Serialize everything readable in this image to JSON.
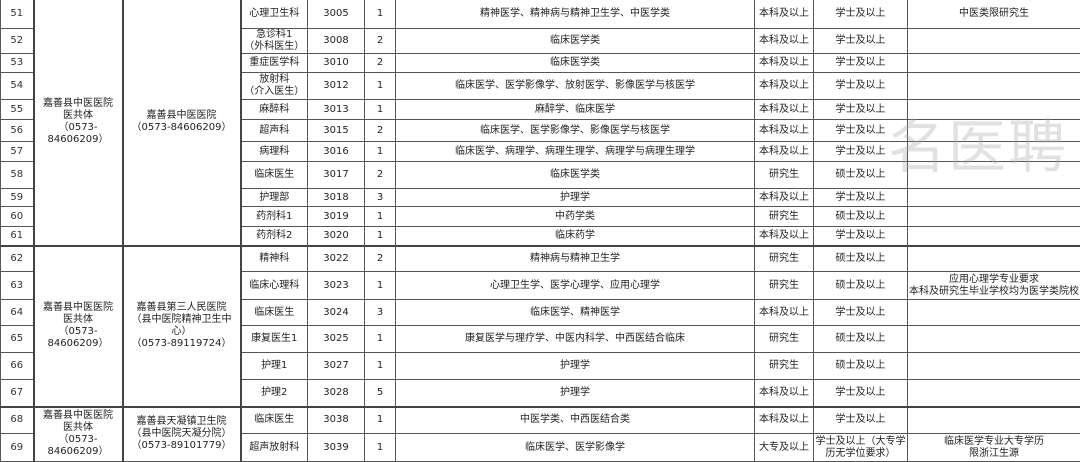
{
  "groups": [
    {
      "alliance": "嘉善县中医医院\n医共体\n（0573-84606209）",
      "hospital": "嘉善县中医医院\n（0573-84606209）"
    },
    {
      "alliance": "嘉善县中医医院\n医共体\n（0573-84606209）",
      "hospital": "嘉善县第三人民医院\n（县中医院精神卫生中心）\n（0573-89119724）"
    },
    {
      "alliance": "嘉善县中医医院\n医共体\n（0573-84606209）",
      "hospital": "嘉善县天凝镇卫生院\n（县中医院天凝分院）\n（0573-89101779）"
    }
  ],
  "rows": [
    {
      "no": "51",
      "dept": "心理卫生科",
      "code": "3005",
      "count": "1",
      "major": "精神医学、精神病与精神卫生学、中医学类",
      "edu": "本科及以上",
      "degree": "学士及以上",
      "remark": "中医类限研究生"
    },
    {
      "no": "52",
      "dept": "急诊科1\n（外科医生）",
      "code": "3008",
      "count": "2",
      "major": "临床医学类",
      "edu": "本科及以上",
      "degree": "学士及以上",
      "remark": ""
    },
    {
      "no": "53",
      "dept": "重症医学科",
      "code": "3010",
      "count": "2",
      "major": "临床医学类",
      "edu": "本科及以上",
      "degree": "学士及以上",
      "remark": ""
    },
    {
      "no": "54",
      "dept": "放射科\n（介入医生）",
      "code": "3012",
      "count": "1",
      "major": "临床医学、医学影像学、放射医学、影像医学与核医学",
      "edu": "本科及以上",
      "degree": "学士及以上",
      "remark": ""
    },
    {
      "no": "55",
      "dept": "麻醉科",
      "code": "3013",
      "count": "1",
      "major": "麻醉学、临床医学",
      "edu": "本科及以上",
      "degree": "学士及以上",
      "remark": ""
    },
    {
      "no": "56",
      "dept": "超声科",
      "code": "3015",
      "count": "2",
      "major": "临床医学、医学影像学、影像医学与核医学",
      "edu": "本科及以上",
      "degree": "学士及以上",
      "remark": ""
    },
    {
      "no": "57",
      "dept": "病理科",
      "code": "3016",
      "count": "1",
      "major": "临床医学、病理学、病理生理学、病理学与病理生理学",
      "edu": "本科及以上",
      "degree": "学士及以上",
      "remark": ""
    },
    {
      "no": "58",
      "dept": "临床医生",
      "code": "3017",
      "count": "2",
      "major": "临床医学类",
      "edu": "研究生",
      "degree": "硕士及以上",
      "remark": ""
    },
    {
      "no": "59",
      "dept": "护理部",
      "code": "3018",
      "count": "3",
      "major": "护理学",
      "edu": "本科及以上",
      "degree": "学士及以上",
      "remark": ""
    },
    {
      "no": "60",
      "dept": "药剂科1",
      "code": "3019",
      "count": "1",
      "major": "中药学类",
      "edu": "研究生",
      "degree": "硕士及以上",
      "remark": ""
    },
    {
      "no": "61",
      "dept": "药剂科2",
      "code": "3020",
      "count": "1",
      "major": "临床药学",
      "edu": "本科及以上",
      "degree": "学士及以上",
      "remark": ""
    },
    {
      "no": "62",
      "dept": "精神科",
      "code": "3022",
      "count": "2",
      "major": "精神病与精神卫生学",
      "edu": "研究生",
      "degree": "硕士及以上",
      "remark": ""
    },
    {
      "no": "63",
      "dept": "临床心理科",
      "code": "3023",
      "count": "1",
      "major": "心理卫生学、医学心理学、应用心理学",
      "edu": "研究生",
      "degree": "硕士及以上",
      "remark": "应用心理学专业要求\n本科及研究生毕业学校均为医学类院校"
    },
    {
      "no": "64",
      "dept": "临床医生",
      "code": "3024",
      "count": "3",
      "major": "临床医学、精神医学",
      "edu": "本科及以上",
      "degree": "学士及以上",
      "remark": ""
    },
    {
      "no": "65",
      "dept": "康复医生1",
      "code": "3025",
      "count": "1",
      "major": "康复医学与理疗学、中医内科学、中西医结合临床",
      "edu": "研究生",
      "degree": "硕士及以上",
      "remark": ""
    },
    {
      "no": "66",
      "dept": "护理1",
      "code": "3027",
      "count": "1",
      "major": "护理学",
      "edu": "研究生",
      "degree": "硕士及以上",
      "remark": ""
    },
    {
      "no": "67",
      "dept": "护理2",
      "code": "3028",
      "count": "5",
      "major": "护理学",
      "edu": "本科及以上",
      "degree": "学士及以上",
      "remark": ""
    },
    {
      "no": "68",
      "dept": "临床医生",
      "code": "3038",
      "count": "1",
      "major": "中医学类、中西医结合类",
      "edu": "本科及以上",
      "degree": "学士及以上",
      "remark": ""
    },
    {
      "no": "69",
      "dept": "超声放射科",
      "code": "3039",
      "count": "1",
      "major": "临床医学、医学影像学",
      "edu": "大专及以上",
      "degree": "学士及以上（大专学历无学位要求）",
      "remark": "临床医学专业大专学历\n限浙江生源"
    }
  ],
  "watermark": "名医聘"
}
